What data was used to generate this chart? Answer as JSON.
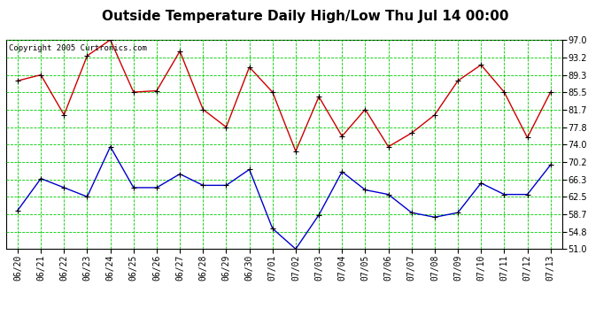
{
  "title": "Outside Temperature Daily High/Low Thu Jul 14 00:00",
  "copyright": "Copyright 2005 Curtronics.com",
  "x_labels": [
    "06/20",
    "06/21",
    "06/22",
    "06/23",
    "06/24",
    "06/25",
    "06/26",
    "06/27",
    "06/28",
    "06/29",
    "06/30",
    "07/01",
    "07/02",
    "07/03",
    "07/04",
    "07/05",
    "07/06",
    "07/07",
    "07/08",
    "07/09",
    "07/10",
    "07/11",
    "07/12",
    "07/13"
  ],
  "high_temps": [
    88.0,
    89.3,
    80.5,
    93.5,
    97.0,
    85.5,
    85.8,
    94.5,
    81.7,
    77.8,
    91.0,
    85.5,
    72.5,
    84.5,
    75.8,
    81.7,
    73.5,
    76.5,
    80.5,
    88.0,
    91.5,
    85.5,
    75.5,
    85.5
  ],
  "low_temps": [
    59.5,
    66.5,
    64.5,
    62.5,
    73.5,
    64.5,
    64.5,
    67.5,
    65.0,
    65.0,
    68.5,
    55.5,
    51.0,
    58.5,
    68.0,
    64.0,
    63.0,
    59.0,
    58.0,
    59.0,
    65.5,
    63.0,
    63.0,
    69.5
  ],
  "high_color": "#cc0000",
  "low_color": "#0000cc",
  "bg_color": "#ffffff",
  "grid_color": "#00cc00",
  "y_ticks": [
    51.0,
    54.8,
    58.7,
    62.5,
    66.3,
    70.2,
    74.0,
    77.8,
    81.7,
    85.5,
    89.3,
    93.2,
    97.0
  ],
  "ylim": [
    51.0,
    97.0
  ],
  "title_fontsize": 11,
  "tick_fontsize": 7,
  "copyright_fontsize": 6.5
}
